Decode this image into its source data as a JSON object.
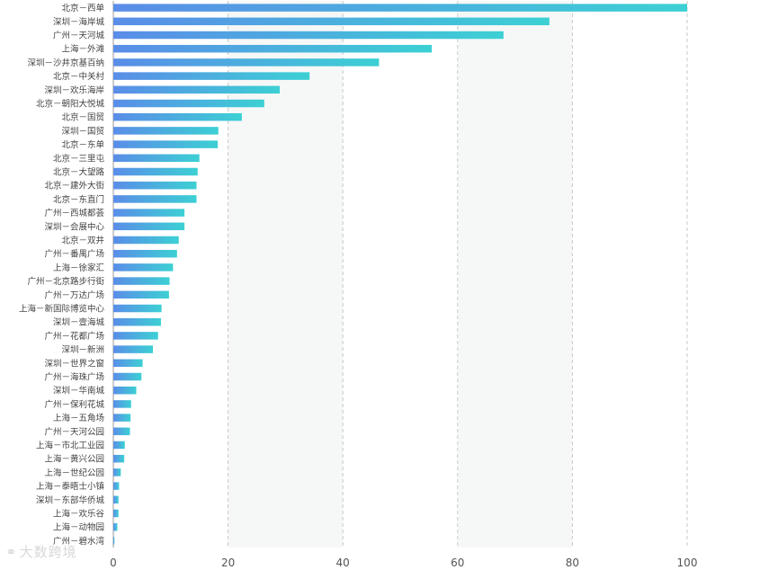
{
  "chart_data": {
    "type": "bar",
    "orientation": "horizontal",
    "categories": [
      "北京－西单",
      "深圳－海岸城",
      "广州－天河城",
      "上海－外滩",
      "深圳－沙井京基百纳",
      "北京－中关村",
      "深圳－欢乐海岸",
      "北京－朝阳大悦城",
      "北京－国贸",
      "深圳－国贸",
      "北京－东单",
      "北京－三里屯",
      "北京－大望路",
      "北京－建外大街",
      "北京－东直门",
      "广州－西城都荟",
      "深圳－会展中心",
      "北京－双井",
      "广州－番禺广场",
      "上海－徐家汇",
      "广州－北京路步行街",
      "广州－万达广场",
      "上海－新国际博览中心",
      "深圳－壹海城",
      "广州－花都广场",
      "深圳－新洲",
      "深圳－世界之窗",
      "广州－海珠广场",
      "深圳－华南城",
      "广州－保利花城",
      "上海－五角场",
      "广州－天河公园",
      "上海－市北工业园",
      "上海－黄兴公园",
      "上海－世纪公园",
      "上海－泰晤士小镇",
      "深圳－东部华侨城",
      "上海－欢乐谷",
      "上海－动物园",
      "广州－碧水湾"
    ],
    "values": [
      100,
      76,
      68,
      55.5,
      46.3,
      34.2,
      29,
      26.3,
      22.4,
      18.3,
      18.2,
      15,
      14.7,
      14.5,
      14.5,
      12.4,
      12.4,
      11.4,
      11.1,
      10.4,
      9.8,
      9.7,
      8.4,
      8.3,
      7.8,
      6.9,
      5.1,
      4.9,
      4.0,
      3.1,
      3.0,
      2.9,
      2.0,
      1.9,
      1.3,
      1.0,
      0.9,
      0.9,
      0.7,
      0.2
    ],
    "xticks": [
      "0",
      "20",
      "40",
      "60",
      "80",
      "100"
    ],
    "xlim": [
      0,
      100
    ],
    "grid": true,
    "gradient": [
      "#5a8de8",
      "#3cd0d4"
    ]
  },
  "watermark": {
    "text": "大数跨境",
    "icon": "logo-icon"
  }
}
